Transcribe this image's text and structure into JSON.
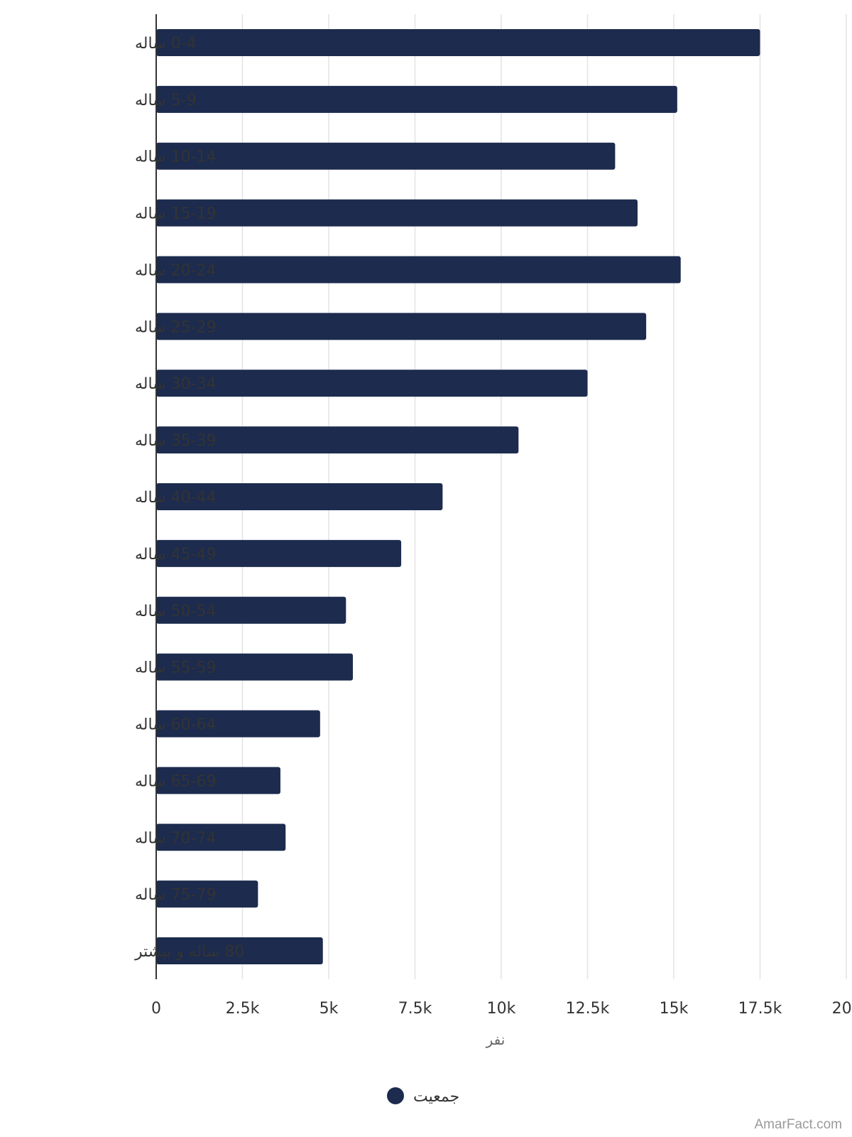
{
  "chart_data": {
    "type": "bar",
    "orientation": "horizontal",
    "categories": [
      "0-4 ساله",
      "5-9 ساله",
      "10-14 ساله",
      "15-19 ساله",
      "20-24 ساله",
      "25-29 ساله",
      "30-34 ساله",
      "35-39 ساله",
      "40-44 ساله",
      "45-49 ساله",
      "50-54 ساله",
      "55-59 ساله",
      "60-64 ساله",
      "65-69 ساله",
      "70-74 ساله",
      "75-79 ساله",
      "80 ساله و بیشتر"
    ],
    "series": [
      {
        "name": "جمعیت",
        "color": "#1c2b4e",
        "values": [
          17500,
          15100,
          13300,
          13950,
          15200,
          14200,
          12500,
          10500,
          8300,
          7100,
          5500,
          5700,
          4750,
          3600,
          3750,
          2950,
          4830
        ]
      }
    ],
    "xlabel": "نفر",
    "ylabel": "",
    "xlim": [
      0,
      20000
    ],
    "xticks": [
      0,
      2500,
      5000,
      7500,
      10000,
      12500,
      15000,
      17500,
      20000
    ],
    "xtick_labels": [
      "0",
      "2.5k",
      "5k",
      "7.5k",
      "10k",
      "12.5k",
      "15k",
      "17.5k",
      "20k"
    ],
    "grid": "vertical",
    "legend_position": "bottom"
  },
  "watermark": "AmarFact.com"
}
